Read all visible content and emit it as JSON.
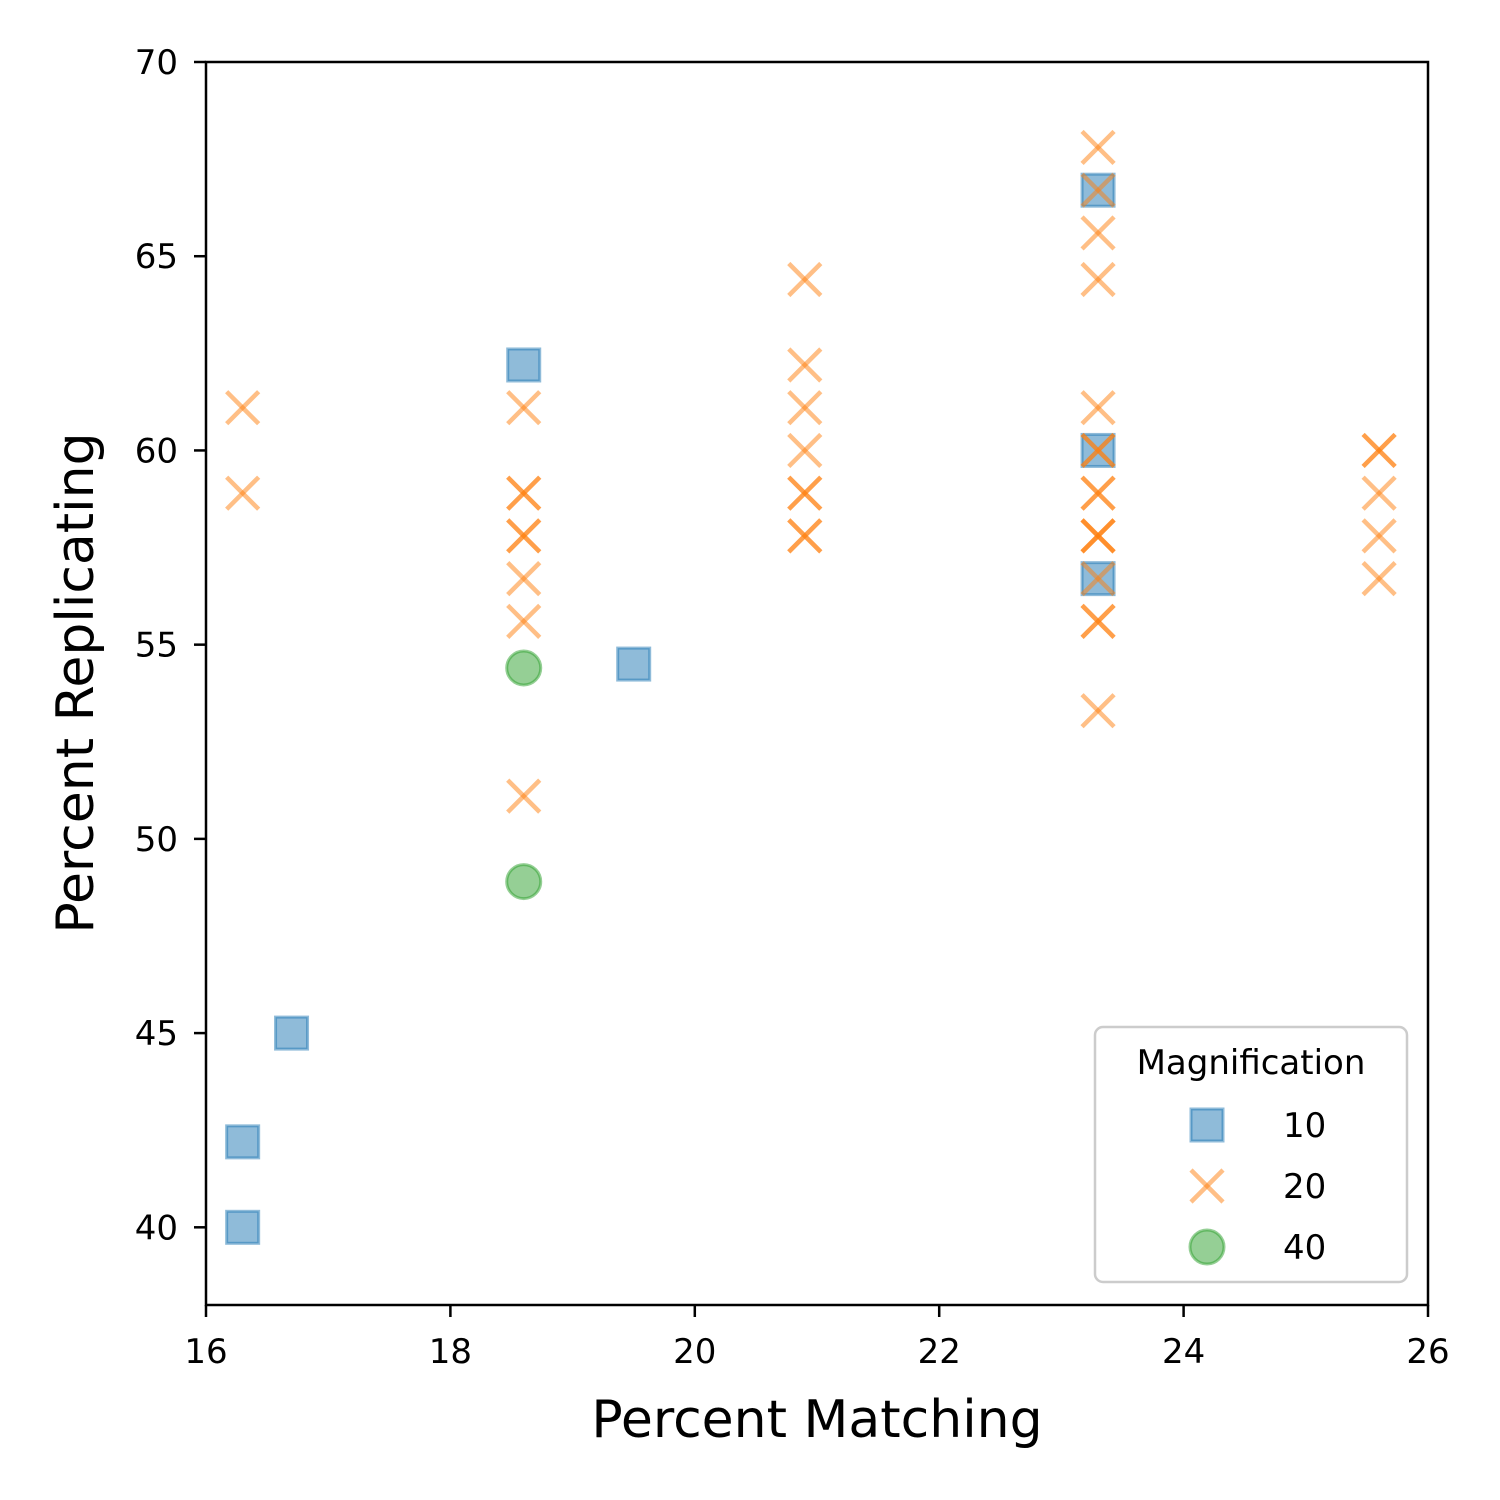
{
  "chart_data": {
    "type": "scatter",
    "xlabel": "Percent Matching",
    "ylabel": "Percent Replicating",
    "xlim": [
      16,
      26
    ],
    "ylim": [
      38,
      70
    ],
    "xticks": [
      16,
      18,
      20,
      22,
      24,
      26
    ],
    "yticks": [
      40,
      45,
      50,
      55,
      60,
      65,
      70
    ],
    "grid": false,
    "legend": {
      "title": "Magnification",
      "placement": "lower-right"
    },
    "series": [
      {
        "name": "10",
        "marker": "square",
        "color": "#1f77b4",
        "points": [
          [
            16.3,
            40.0
          ],
          [
            16.3,
            42.2
          ],
          [
            16.7,
            45.0
          ],
          [
            18.6,
            62.2
          ],
          [
            19.5,
            54.5
          ],
          [
            23.3,
            66.7
          ],
          [
            23.3,
            60.0
          ],
          [
            23.3,
            56.7
          ]
        ]
      },
      {
        "name": "20",
        "marker": "x",
        "color": "#ff7f0e",
        "points": [
          [
            16.3,
            61.1
          ],
          [
            16.3,
            58.9
          ],
          [
            18.6,
            61.1
          ],
          [
            18.6,
            58.9
          ],
          [
            18.6,
            58.9
          ],
          [
            18.6,
            57.8
          ],
          [
            18.6,
            57.8
          ],
          [
            18.6,
            56.7
          ],
          [
            18.6,
            55.6
          ],
          [
            18.6,
            51.1
          ],
          [
            20.9,
            64.4
          ],
          [
            20.9,
            62.2
          ],
          [
            20.9,
            61.1
          ],
          [
            20.9,
            60.0
          ],
          [
            20.9,
            58.9
          ],
          [
            20.9,
            58.9
          ],
          [
            20.9,
            57.8
          ],
          [
            20.9,
            57.8
          ],
          [
            23.3,
            67.8
          ],
          [
            23.3,
            66.7
          ],
          [
            23.3,
            65.6
          ],
          [
            23.3,
            64.4
          ],
          [
            23.3,
            61.1
          ],
          [
            23.3,
            60.0
          ],
          [
            23.3,
            60.0
          ],
          [
            23.3,
            58.9
          ],
          [
            23.3,
            58.9
          ],
          [
            23.3,
            57.8
          ],
          [
            23.3,
            57.8
          ],
          [
            23.3,
            57.8
          ],
          [
            23.3,
            56.7
          ],
          [
            23.3,
            55.6
          ],
          [
            23.3,
            55.6
          ],
          [
            23.3,
            53.3
          ],
          [
            25.6,
            60.0
          ],
          [
            25.6,
            60.0
          ],
          [
            25.6,
            58.9
          ],
          [
            25.6,
            57.8
          ],
          [
            25.6,
            56.7
          ]
        ]
      },
      {
        "name": "40",
        "marker": "circle",
        "color": "#2ca02c",
        "points": [
          [
            18.6,
            54.4
          ],
          [
            18.6,
            48.9
          ]
        ]
      }
    ]
  }
}
